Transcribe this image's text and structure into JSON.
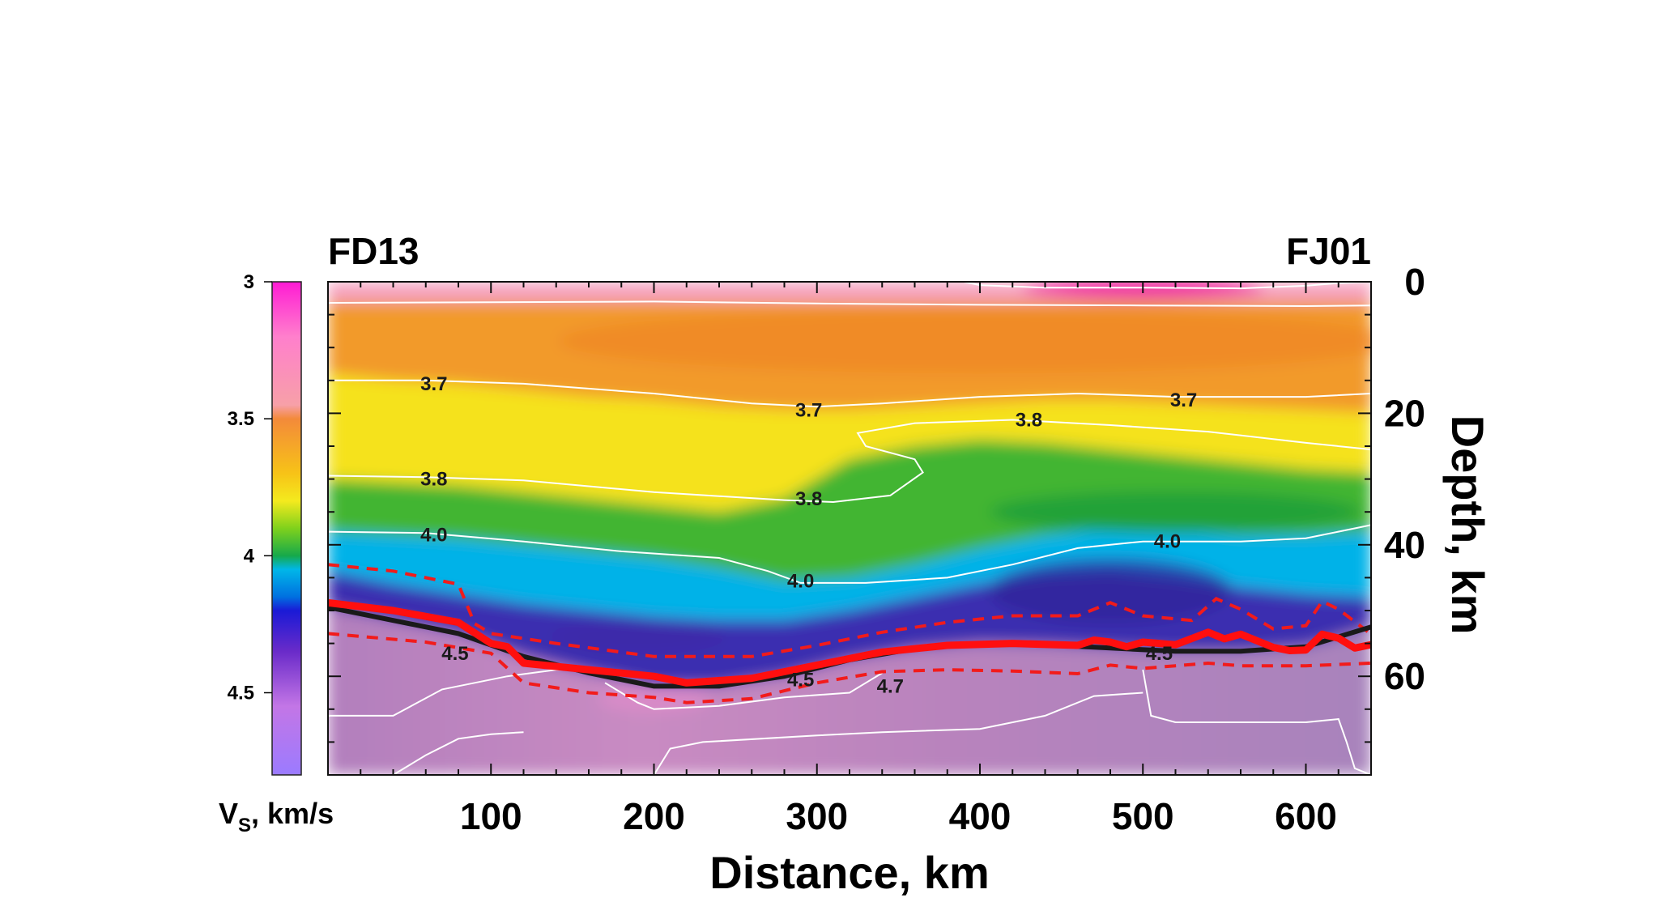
{
  "chart_data": {
    "type": "heatmap",
    "title": "",
    "xlabel": "Distance, km",
    "ylabel": "Depth, km",
    "xlim": [
      0,
      640
    ],
    "ylim": [
      75,
      0
    ],
    "x_ticks": [
      100,
      200,
      300,
      400,
      500,
      600
    ],
    "y_ticks": [
      0,
      20,
      40,
      60
    ],
    "station_left": "FD13",
    "station_right": "FJ01",
    "colorbar": {
      "label_main": "V",
      "label_sub": "S",
      "label_rest": ", km/s",
      "vmin": 3.0,
      "vmax": 4.8,
      "ticks": [
        "3",
        "3.5",
        "4",
        "4.5"
      ],
      "tick_values": [
        3.0,
        3.5,
        4.0,
        4.5
      ],
      "stops": [
        {
          "v": 3.0,
          "color": "#ff1bd4"
        },
        {
          "v": 3.2,
          "color": "#ff7fcc"
        },
        {
          "v": 3.45,
          "color": "#f7a0a8"
        },
        {
          "v": 3.5,
          "color": "#f38a3a"
        },
        {
          "v": 3.7,
          "color": "#f7c317"
        },
        {
          "v": 3.8,
          "color": "#f4ea1e"
        },
        {
          "v": 3.9,
          "color": "#7fd11c"
        },
        {
          "v": 4.0,
          "color": "#16a94a"
        },
        {
          "v": 4.05,
          "color": "#00b7e8"
        },
        {
          "v": 4.15,
          "color": "#0070e0"
        },
        {
          "v": 4.2,
          "color": "#1a1ad6"
        },
        {
          "v": 4.35,
          "color": "#6a2bc9"
        },
        {
          "v": 4.55,
          "color": "#c376e6"
        },
        {
          "v": 4.8,
          "color": "#9b7bff"
        }
      ]
    },
    "velocity_layers": [
      {
        "name": "pink",
        "color": "#f6a1bf"
      },
      {
        "name": "orange",
        "color": "#f29a2a"
      },
      {
        "name": "yellow",
        "color": "#f5e21f"
      },
      {
        "name": "green",
        "color": "#43b532"
      },
      {
        "name": "cyan",
        "color": "#06b2e8"
      },
      {
        "name": "indigo",
        "color": "#3b2fb0"
      },
      {
        "name": "mantle",
        "color": "#b781bd"
      }
    ],
    "contour_labels": [
      {
        "text": "3.7",
        "x": 65,
        "depth": 15.5
      },
      {
        "text": "3.7",
        "x": 295,
        "depth": 19.5
      },
      {
        "text": "3.7",
        "x": 525,
        "depth": 18
      },
      {
        "text": "3.8",
        "x": 65,
        "depth": 30
      },
      {
        "text": "3.8",
        "x": 430,
        "depth": 21
      },
      {
        "text": "3.8",
        "x": 295,
        "depth": 33
      },
      {
        "text": "4.0",
        "x": 65,
        "depth": 38.5
      },
      {
        "text": "4.0",
        "x": 515,
        "depth": 39.5
      },
      {
        "text": "4.0",
        "x": 290,
        "depth": 45.5
      },
      {
        "text": "4.5",
        "x": 78,
        "depth": 56.5
      },
      {
        "text": "4.5",
        "x": 290,
        "depth": 60.5
      },
      {
        "text": "4.5",
        "x": 510,
        "depth": 56.5
      },
      {
        "text": "4.7",
        "x": 345,
        "depth": 61.5
      }
    ],
    "moho_black": {
      "x": [
        0,
        40,
        80,
        120,
        160,
        200,
        240,
        280,
        320,
        360,
        400,
        440,
        480,
        520,
        560,
        600,
        640
      ],
      "depth": [
        49.5,
        51.5,
        53.5,
        57,
        59.5,
        61.5,
        61.5,
        60,
        57.5,
        55.8,
        55,
        55.2,
        55.7,
        56.2,
        56.2,
        55.5,
        52.5
      ]
    },
    "moho_red": {
      "x": [
        0,
        40,
        80,
        100,
        110,
        120,
        160,
        200,
        220,
        260,
        300,
        340,
        380,
        420,
        460,
        470,
        480,
        490,
        500,
        520,
        540,
        550,
        560,
        580,
        590,
        600,
        610,
        620,
        630,
        640
      ],
      "depth": [
        48.8,
        50,
        51.8,
        55,
        55.5,
        58,
        59,
        60,
        61,
        60.3,
        58.3,
        56.3,
        55.3,
        55,
        55.3,
        54.5,
        54.8,
        55.5,
        54.8,
        55.2,
        53.3,
        54.3,
        53.6,
        55.6,
        56.1,
        56,
        53.6,
        54.2,
        55.7,
        55.2
      ]
    },
    "moho_upper_dashed": {
      "x": [
        0,
        40,
        80,
        90,
        100,
        140,
        200,
        260,
        300,
        340,
        380,
        420,
        460,
        480,
        500,
        530,
        545,
        560,
        580,
        600,
        610,
        620,
        640
      ],
      "depth": [
        43,
        44,
        46,
        52,
        53.5,
        55,
        57,
        57,
        55.3,
        53.3,
        51.8,
        50.8,
        50.8,
        48.8,
        50.8,
        51.5,
        48.2,
        49.8,
        52.8,
        52.3,
        48.6,
        49.8,
        53.6
      ]
    },
    "moho_lower_dashed": {
      "x": [
        0,
        60,
        100,
        120,
        160,
        200,
        220,
        260,
        300,
        340,
        380,
        420,
        460,
        480,
        500,
        520,
        540,
        560,
        600,
        640
      ],
      "depth": [
        53.5,
        54.8,
        56.5,
        61,
        62.5,
        63.2,
        64,
        63.4,
        61,
        59.3,
        59,
        59.2,
        59.6,
        58.3,
        58.8,
        58.4,
        58,
        58.4,
        58.4,
        58
      ]
    }
  }
}
